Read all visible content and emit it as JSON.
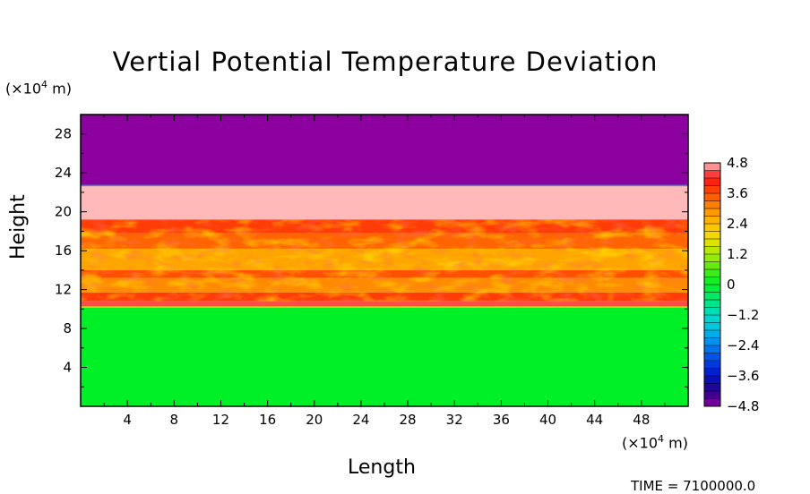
{
  "chart_data": {
    "type": "heatmap",
    "title": "Vertial Potential Temperature Deviation",
    "xlabel": "Length",
    "ylabel": "Height",
    "x_unit": "(×10⁴ m)",
    "y_unit": "(×10⁴ m)",
    "xlim": [
      0,
      52
    ],
    "ylim": [
      0,
      30
    ],
    "x_ticks": [
      "4",
      "8",
      "12",
      "16",
      "20",
      "24",
      "28",
      "32",
      "36",
      "40",
      "44",
      "48"
    ],
    "y_ticks": [
      "4",
      "8",
      "12",
      "16",
      "20",
      "24",
      "28"
    ],
    "colorbar": {
      "range": [
        -4.8,
        4.8
      ],
      "tick_labels": [
        "4.8",
        "3.6",
        "2.4",
        "1.2",
        "0",
        "−1.2",
        "−2.4",
        "−3.6",
        "−4.8"
      ],
      "tick_values": [
        4.8,
        3.6,
        2.4,
        1.2,
        0,
        -1.2,
        -2.4,
        -3.6,
        -4.8
      ]
    },
    "layers": [
      {
        "y_from": 22.7,
        "y_to": 30,
        "value": -4.8
      },
      {
        "y_from": 19.2,
        "y_to": 22.7,
        "value": 4.8
      },
      {
        "y_from": 17.8,
        "y_to": 19.2,
        "value": 3.8
      },
      {
        "y_from": 16.2,
        "y_to": 17.8,
        "value": 3.4
      },
      {
        "y_from": 14.0,
        "y_to": 16.2,
        "value": 2.7
      },
      {
        "y_from": 13.2,
        "y_to": 14.0,
        "value": 3.6
      },
      {
        "y_from": 11.7,
        "y_to": 13.2,
        "value": 3.0
      },
      {
        "y_from": 10.8,
        "y_to": 11.7,
        "value": 3.8
      },
      {
        "y_from": 10.2,
        "y_to": 10.8,
        "value": 4.4
      },
      {
        "y_from": 0,
        "y_to": 10.2,
        "value": 0
      }
    ],
    "timestamp": "TIME = 7100000.0"
  }
}
